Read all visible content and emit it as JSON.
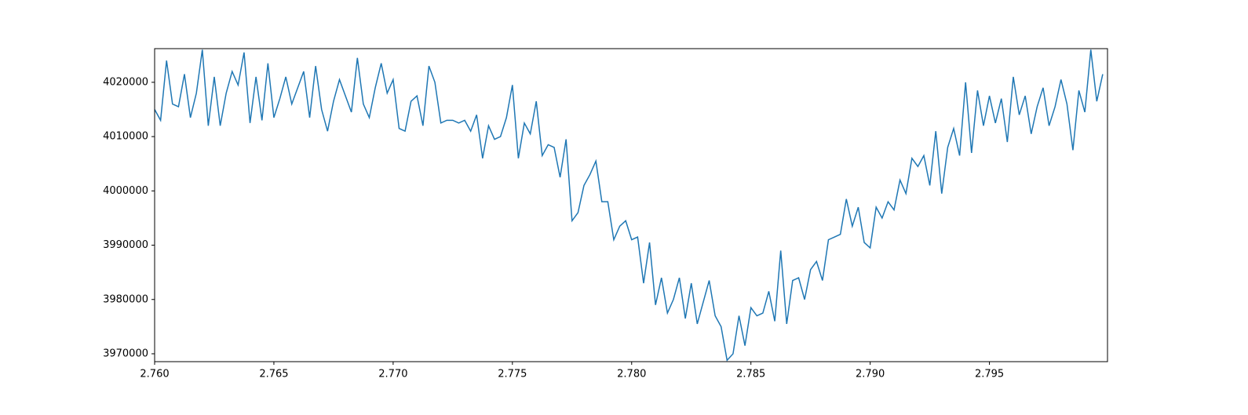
{
  "chart_data": {
    "type": "line",
    "color": "#1f77b4",
    "x": [
      2.76,
      2.76025,
      2.7605,
      2.76075,
      2.761,
      2.76125,
      2.7615,
      2.76175,
      2.762,
      2.76225,
      2.7625,
      2.76275,
      2.763,
      2.76325,
      2.7635,
      2.76375,
      2.764,
      2.76425,
      2.7645,
      2.76475,
      2.765,
      2.76525,
      2.7655,
      2.76575,
      2.766,
      2.76625,
      2.7665,
      2.76675,
      2.767,
      2.76725,
      2.7675,
      2.76775,
      2.768,
      2.76825,
      2.7685,
      2.76875,
      2.769,
      2.76925,
      2.7695,
      2.76975,
      2.77,
      2.77025,
      2.7705,
      2.77075,
      2.771,
      2.77125,
      2.7715,
      2.77175,
      2.772,
      2.77225,
      2.7725,
      2.77275,
      2.773,
      2.77325,
      2.7735,
      2.77375,
      2.774,
      2.77425,
      2.7745,
      2.77475,
      2.775,
      2.77525,
      2.7755,
      2.77575,
      2.776,
      2.77625,
      2.7765,
      2.77675,
      2.777,
      2.77725,
      2.7775,
      2.77775,
      2.778,
      2.77825,
      2.7785,
      2.77875,
      2.779,
      2.77925,
      2.7795,
      2.77975,
      2.78,
      2.78025,
      2.7805,
      2.78075,
      2.781,
      2.78125,
      2.7815,
      2.78175,
      2.782,
      2.78225,
      2.7825,
      2.78275,
      2.783,
      2.78325,
      2.7835,
      2.78375,
      2.784,
      2.78425,
      2.7845,
      2.78475,
      2.785,
      2.78525,
      2.7855,
      2.78575,
      2.786,
      2.78625,
      2.7865,
      2.78675,
      2.787,
      2.78725,
      2.7875,
      2.78775,
      2.788,
      2.78825,
      2.7885,
      2.78875,
      2.789,
      2.78925,
      2.7895,
      2.78975,
      2.79,
      2.79025,
      2.7905,
      2.79075,
      2.791,
      2.79125,
      2.7915,
      2.79175,
      2.792,
      2.79225,
      2.7925,
      2.79275,
      2.793,
      2.79325,
      2.7935,
      2.79375,
      2.794,
      2.79425,
      2.7945,
      2.79475,
      2.795,
      2.79525,
      2.7955,
      2.79575,
      2.796,
      2.79625,
      2.7965,
      2.79675,
      2.797,
      2.79725,
      2.7975,
      2.79775,
      2.798,
      2.79825,
      2.7985,
      2.79875,
      2.799,
      2.79925,
      2.7995,
      2.79975
    ],
    "values": [
      4015000,
      4013000,
      4024000,
      4016000,
      4015500,
      4021500,
      4013500,
      4018000,
      4026000,
      4012000,
      4021000,
      4012000,
      4018000,
      4022000,
      4019500,
      4025500,
      4012500,
      4021000,
      4013000,
      4023500,
      4013500,
      4017000,
      4021000,
      4016000,
      4019000,
      4022000,
      4013500,
      4023000,
      4015000,
      4011000,
      4016500,
      4020500,
      4017500,
      4014500,
      4024500,
      4016000,
      4013500,
      4019000,
      4023500,
      4018000,
      4020500,
      4011500,
      4011000,
      4016500,
      4017500,
      4012000,
      4023000,
      4020000,
      4012500,
      4013000,
      4013000,
      4012500,
      4013000,
      4011000,
      4014000,
      4006000,
      4012000,
      4009500,
      4010000,
      4013500,
      4019500,
      4006000,
      4012500,
      4010500,
      4016500,
      4006500,
      4008500,
      4008000,
      4002500,
      4009500,
      3994500,
      3996000,
      4001000,
      4003000,
      4005500,
      3998000,
      3998000,
      3991000,
      3993500,
      3994500,
      3991000,
      3991500,
      3983000,
      3990500,
      3979000,
      3984000,
      3977500,
      3980000,
      3984000,
      3976500,
      3983000,
      3975500,
      3979500,
      3983500,
      3977000,
      3975000,
      3968800,
      3970000,
      3977000,
      3971500,
      3978500,
      3977000,
      3977500,
      3981500,
      3976000,
      3989000,
      3975500,
      3983500,
      3984000,
      3980000,
      3985500,
      3987000,
      3983500,
      3991000,
      3991500,
      3992000,
      3998500,
      3993500,
      3997000,
      3990500,
      3989500,
      3997000,
      3995000,
      3998000,
      3996500,
      4002000,
      3999500,
      4006000,
      4004500,
      4006500,
      4001000,
      4011000,
      3999500,
      4008000,
      4011500,
      4006500,
      4020000,
      4007000,
      4018500,
      4012000,
      4017500,
      4012500,
      4017000,
      4009000,
      4021000,
      4014000,
      4017500,
      4010500,
      4015500,
      4019000,
      4012000,
      4015500,
      4020500,
      4016000,
      4007500,
      4018500,
      4014500,
      4026000,
      4016500,
      4021500
    ],
    "xlim": [
      2.76,
      2.79995
    ],
    "xticks": [
      {
        "value": 2.76,
        "label": "2.760"
      },
      2.765,
      {
        "value": 2.77,
        "label": "2.770"
      },
      2.775,
      {
        "value": 2.78,
        "label": "2.780"
      },
      2.785,
      {
        "value": 2.79,
        "label": "2.790"
      },
      2.795
    ],
    "ylim": [
      3968550,
      4026200
    ],
    "yticks": [
      3970000,
      3980000,
      3990000,
      4000000,
      4010000,
      4020000
    ]
  }
}
